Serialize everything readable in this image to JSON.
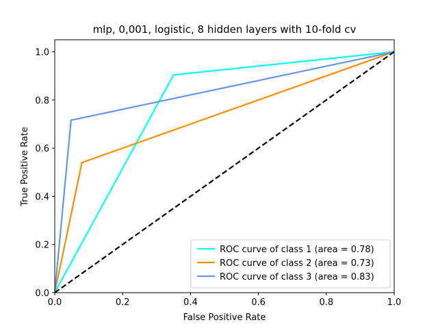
{
  "chart_data": {
    "type": "line",
    "title": "mlp, 0,001, logistic, 8 hidden layers with 10-fold cv",
    "xlabel": "False Positive Rate",
    "ylabel": "True Positive Rate",
    "xlim": [
      0.0,
      1.0
    ],
    "ylim": [
      0.0,
      1.05
    ],
    "xticks": [
      0.0,
      0.2,
      0.4,
      0.6,
      0.8,
      1.0
    ],
    "xtick_labels": [
      "0.0",
      "0.2",
      "0.4",
      "0.6",
      "0.8",
      "1.0"
    ],
    "yticks": [
      0.0,
      0.2,
      0.4,
      0.6,
      0.8,
      1.0
    ],
    "ytick_labels": [
      "0.0",
      "0.2",
      "0.4",
      "0.6",
      "0.8",
      "1.0"
    ],
    "grid": false,
    "legend_position": "lower-right",
    "series": [
      {
        "name": "ROC curve of class 1 (area = 0.78)",
        "color": "#00ffff",
        "x": [
          0.0,
          0.35,
          1.0
        ],
        "y": [
          0.0,
          0.904,
          1.0
        ]
      },
      {
        "name": "ROC curve of class 2 (area = 0.73)",
        "color": "#ff8c00",
        "x": [
          0.0,
          0.08,
          1.0
        ],
        "y": [
          0.0,
          0.54,
          1.0
        ]
      },
      {
        "name": "ROC curve of class 3 (area = 0.83)",
        "color": "#6495ed",
        "x": [
          0.0,
          0.048,
          1.0
        ],
        "y": [
          0.0,
          0.716,
          1.0
        ]
      }
    ],
    "reference_line": {
      "color": "#000000",
      "style": "dashed",
      "x": [
        0.0,
        1.0
      ],
      "y": [
        0.0,
        1.0
      ]
    }
  }
}
